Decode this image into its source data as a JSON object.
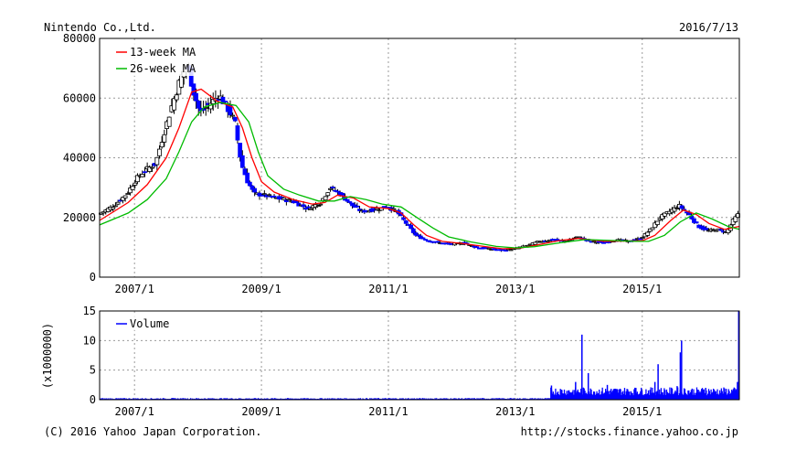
{
  "header": {
    "company": "Nintendo Co.,Ltd.",
    "date": "2016/7/13"
  },
  "footer": {
    "copyright": "(C) 2016 Yahoo Japan Corporation.",
    "url": "http://stocks.finance.yahoo.co.jp"
  },
  "colors": {
    "candle_up": "#ffffff",
    "candle_down": "#0000ff",
    "ma13": "#ff0000",
    "ma26": "#00bb00",
    "volume": "#0000ff"
  },
  "chart_data": [
    {
      "type": "candlestick",
      "title": "",
      "legend": {
        "placement": "top-left",
        "entries": [
          "13-week MA",
          "26-week MA"
        ]
      },
      "grid": true,
      "xlim": [
        2006.45,
        2016.53
      ],
      "ylim": [
        0,
        80000
      ],
      "x_ticks": [
        2007,
        2009,
        2011,
        2013,
        2015
      ],
      "x_tick_labels": [
        "2007/1",
        "2009/1",
        "2011/1",
        "2013/1",
        "2015/1"
      ],
      "y_ticks": [
        0,
        20000,
        40000,
        60000,
        80000
      ],
      "y_tick_labels": [
        "0",
        "20000",
        "40000",
        "60000",
        "80000"
      ],
      "close_path": [
        [
          2006.45,
          21000
        ],
        [
          2006.7,
          24000
        ],
        [
          2006.9,
          28000
        ],
        [
          2007.05,
          33000
        ],
        [
          2007.2,
          36000
        ],
        [
          2007.35,
          38000
        ],
        [
          2007.45,
          46000
        ],
        [
          2007.6,
          57000
        ],
        [
          2007.75,
          67000
        ],
        [
          2007.85,
          71000
        ],
        [
          2007.95,
          62000
        ],
        [
          2008.05,
          55000
        ],
        [
          2008.2,
          58000
        ],
        [
          2008.35,
          61000
        ],
        [
          2008.5,
          56000
        ],
        [
          2008.6,
          52000
        ],
        [
          2008.7,
          38000
        ],
        [
          2008.8,
          32000
        ],
        [
          2008.9,
          28000
        ],
        [
          2009.05,
          27500
        ],
        [
          2009.25,
          26500
        ],
        [
          2009.5,
          25500
        ],
        [
          2009.75,
          23000
        ],
        [
          2009.95,
          25000
        ],
        [
          2010.1,
          30000
        ],
        [
          2010.25,
          28000
        ],
        [
          2010.45,
          24000
        ],
        [
          2010.6,
          22000
        ],
        [
          2010.75,
          22500
        ],
        [
          2011.0,
          23500
        ],
        [
          2011.15,
          22000
        ],
        [
          2011.3,
          18000
        ],
        [
          2011.45,
          14000
        ],
        [
          2011.6,
          12500
        ],
        [
          2011.8,
          11500
        ],
        [
          2012.0,
          11000
        ],
        [
          2012.2,
          11500
        ],
        [
          2012.4,
          10000
        ],
        [
          2012.6,
          9500
        ],
        [
          2012.8,
          9000
        ],
        [
          2013.0,
          9500
        ],
        [
          2013.2,
          10500
        ],
        [
          2013.4,
          12000
        ],
        [
          2013.6,
          12500
        ],
        [
          2013.8,
          12000
        ],
        [
          2014.0,
          13500
        ],
        [
          2014.2,
          12000
        ],
        [
          2014.4,
          11500
        ],
        [
          2014.6,
          12500
        ],
        [
          2014.8,
          12000
        ],
        [
          2015.0,
          13000
        ],
        [
          2015.15,
          16000
        ],
        [
          2015.3,
          20000
        ],
        [
          2015.45,
          22000
        ],
        [
          2015.6,
          24000
        ],
        [
          2015.75,
          21000
        ],
        [
          2015.9,
          17000
        ],
        [
          2016.05,
          15500
        ],
        [
          2016.2,
          16000
        ],
        [
          2016.35,
          15000
        ],
        [
          2016.45,
          19000
        ],
        [
          2016.53,
          21000
        ]
      ],
      "series": [
        {
          "name": "13-week MA",
          "color": "#ff0000",
          "points": [
            [
              2006.45,
              19000
            ],
            [
              2006.9,
              25000
            ],
            [
              2007.2,
              31000
            ],
            [
              2007.5,
              40000
            ],
            [
              2007.7,
              50000
            ],
            [
              2007.9,
              62000
            ],
            [
              2008.05,
              63000
            ],
            [
              2008.3,
              59000
            ],
            [
              2008.55,
              57000
            ],
            [
              2008.7,
              50000
            ],
            [
              2008.85,
              40000
            ],
            [
              2009.0,
              32000
            ],
            [
              2009.2,
              28500
            ],
            [
              2009.5,
              26000
            ],
            [
              2009.8,
              24500
            ],
            [
              2010.0,
              25000
            ],
            [
              2010.2,
              27500
            ],
            [
              2010.45,
              26500
            ],
            [
              2010.7,
              23500
            ],
            [
              2011.0,
              23000
            ],
            [
              2011.2,
              21500
            ],
            [
              2011.4,
              17500
            ],
            [
              2011.6,
              14000
            ],
            [
              2011.85,
              12000
            ],
            [
              2012.2,
              11200
            ],
            [
              2012.5,
              10300
            ],
            [
              2012.8,
              9500
            ],
            [
              2013.1,
              9800
            ],
            [
              2013.4,
              11000
            ],
            [
              2013.7,
              12300
            ],
            [
              2014.0,
              13000
            ],
            [
              2014.4,
              12000
            ],
            [
              2014.8,
              12100
            ],
            [
              2015.0,
              12200
            ],
            [
              2015.2,
              14000
            ],
            [
              2015.45,
              19000
            ],
            [
              2015.65,
              22500
            ],
            [
              2015.85,
              21000
            ],
            [
              2016.05,
              18000
            ],
            [
              2016.3,
              16000
            ],
            [
              2016.53,
              17000
            ]
          ]
        },
        {
          "name": "26-week MA",
          "color": "#00bb00",
          "points": [
            [
              2006.45,
              17500
            ],
            [
              2006.9,
              21500
            ],
            [
              2007.2,
              26000
            ],
            [
              2007.5,
              33000
            ],
            [
              2007.7,
              42000
            ],
            [
              2007.9,
              52000
            ],
            [
              2008.1,
              57000
            ],
            [
              2008.35,
              58500
            ],
            [
              2008.6,
              57500
            ],
            [
              2008.8,
              52000
            ],
            [
              2008.95,
              42000
            ],
            [
              2009.1,
              34000
            ],
            [
              2009.35,
              29500
            ],
            [
              2009.6,
              27500
            ],
            [
              2009.9,
              25500
            ],
            [
              2010.15,
              25500
            ],
            [
              2010.4,
              27000
            ],
            [
              2010.65,
              26000
            ],
            [
              2010.9,
              24500
            ],
            [
              2011.2,
              23500
            ],
            [
              2011.45,
              20000
            ],
            [
              2011.7,
              16500
            ],
            [
              2011.95,
              13500
            ],
            [
              2012.3,
              11800
            ],
            [
              2012.7,
              10300
            ],
            [
              2013.0,
              9800
            ],
            [
              2013.3,
              10200
            ],
            [
              2013.7,
              11500
            ],
            [
              2014.1,
              12600
            ],
            [
              2014.5,
              12300
            ],
            [
              2014.9,
              12000
            ],
            [
              2015.1,
              12000
            ],
            [
              2015.35,
              14000
            ],
            [
              2015.6,
              18500
            ],
            [
              2015.85,
              21500
            ],
            [
              2016.1,
              19500
            ],
            [
              2016.35,
              17000
            ],
            [
              2016.53,
              16000
            ]
          ]
        }
      ]
    },
    {
      "type": "bar",
      "title": "",
      "ylabel": "(x1000000)",
      "legend": {
        "placement": "top-left",
        "entries": [
          "Volume"
        ]
      },
      "grid": true,
      "xlim": [
        2006.45,
        2016.53
      ],
      "ylim": [
        0,
        15
      ],
      "y_ticks": [
        0,
        5,
        10,
        15
      ],
      "y_tick_labels": [
        "0",
        "5",
        "10",
        "15"
      ],
      "x_ticks": [
        2007,
        2009,
        2011,
        2013,
        2015
      ],
      "x_tick_labels": [
        "2007/1",
        "2009/1",
        "2011/1",
        "2013/1",
        "2015/1"
      ],
      "series": [
        {
          "name": "Volume",
          "color": "#0000ff",
          "baseline_segments": [
            {
              "from": 2006.45,
              "to": 2013.55,
              "typical": 0.2
            },
            {
              "from": 2013.55,
              "to": 2016.53,
              "typical": 1.5
            }
          ],
          "spikes": [
            [
              2013.57,
              2.4
            ],
            [
              2013.95,
              3.0
            ],
            [
              2014.05,
              11.0
            ],
            [
              2014.15,
              4.5
            ],
            [
              2014.45,
              2.5
            ],
            [
              2014.9,
              2.0
            ],
            [
              2015.2,
              3.0
            ],
            [
              2015.25,
              6.0
            ],
            [
              2015.55,
              2.3
            ],
            [
              2015.6,
              8.0
            ],
            [
              2015.62,
              10.0
            ],
            [
              2016.0,
              2.0
            ],
            [
              2016.5,
              3.0
            ],
            [
              2016.52,
              15.0
            ]
          ]
        }
      ]
    }
  ]
}
